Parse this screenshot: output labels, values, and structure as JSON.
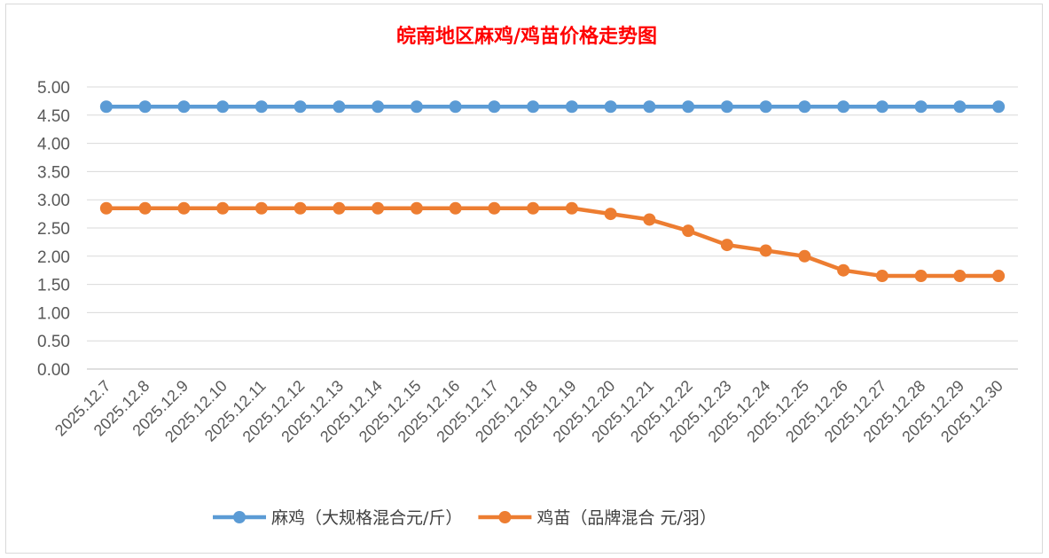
{
  "chart_data": {
    "type": "line",
    "title": "皖南地区麻鸡/鸡苗价格走势图",
    "categories": [
      "2025.12.7",
      "2025.12.8",
      "2025.12.9",
      "2025.12.10",
      "2025.12.11",
      "2025.12.12",
      "2025.12.13",
      "2025.12.14",
      "2025.12.15",
      "2025.12.16",
      "2025.12.17",
      "2025.12.18",
      "2025.12.19",
      "2025.12.20",
      "2025.12.21",
      "2025.12.22",
      "2025.12.23",
      "2025.12.24",
      "2025.12.25",
      "2025.12.26",
      "2025.12.27",
      "2025.12.28",
      "2025.12.29",
      "2025.12.30"
    ],
    "series": [
      {
        "name": "麻鸡（大规格混合元/斤）",
        "color": "#5b9bd5",
        "values": [
          4.65,
          4.65,
          4.65,
          4.65,
          4.65,
          4.65,
          4.65,
          4.65,
          4.65,
          4.65,
          4.65,
          4.65,
          4.65,
          4.65,
          4.65,
          4.65,
          4.65,
          4.65,
          4.65,
          4.65,
          4.65,
          4.65,
          4.65,
          4.65
        ]
      },
      {
        "name": "鸡苗（品牌混合 元/羽）",
        "color": "#ed7d31",
        "values": [
          2.85,
          2.85,
          2.85,
          2.85,
          2.85,
          2.85,
          2.85,
          2.85,
          2.85,
          2.85,
          2.85,
          2.85,
          2.85,
          2.75,
          2.65,
          2.45,
          2.2,
          2.1,
          2.0,
          1.75,
          1.65,
          1.65,
          1.65,
          1.65
        ]
      }
    ],
    "ylim": [
      0,
      5
    ],
    "yticks": [
      "0.00",
      "0.50",
      "1.00",
      "1.50",
      "2.00",
      "2.50",
      "3.00",
      "3.50",
      "4.00",
      "4.50",
      "5.00"
    ],
    "grid": true,
    "legend_position": "bottom",
    "xlabel": "",
    "ylabel": ""
  }
}
